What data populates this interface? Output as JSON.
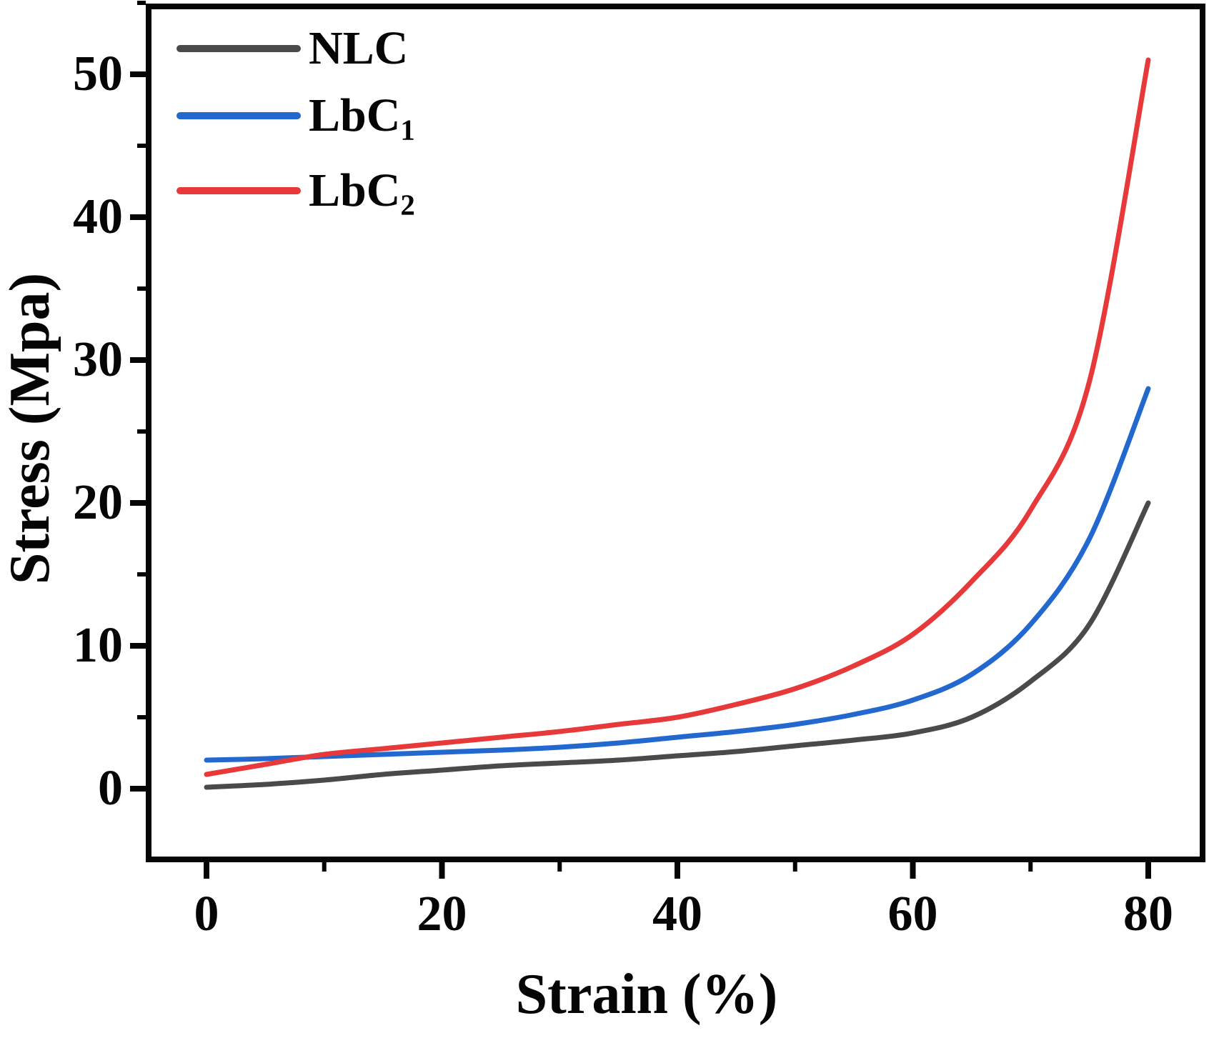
{
  "chart_data": {
    "type": "line",
    "title": "",
    "xlabel": "Strain (%)",
    "ylabel": "Stress (Mpa)",
    "xlim": [
      0,
      80
    ],
    "ylim": [
      0,
      50
    ],
    "grid": false,
    "legend_position": "top-left",
    "x": [
      0,
      5,
      10,
      15,
      20,
      25,
      30,
      35,
      40,
      45,
      50,
      55,
      60,
      65,
      70,
      75,
      80
    ],
    "series": [
      {
        "name": "NLC",
        "sub": "",
        "color_key": "nlc",
        "values": [
          0.1,
          0.3,
          0.6,
          1.0,
          1.3,
          1.6,
          1.8,
          2.0,
          2.3,
          2.6,
          3.0,
          3.4,
          3.9,
          5.0,
          7.5,
          11.5,
          20.0
        ]
      },
      {
        "name": "LbC",
        "sub": "1",
        "color_key": "lbc1",
        "values": [
          2.0,
          2.1,
          2.25,
          2.4,
          2.55,
          2.7,
          2.9,
          3.2,
          3.6,
          4.0,
          4.5,
          5.2,
          6.2,
          8.0,
          11.5,
          17.5,
          28.0
        ]
      },
      {
        "name": "LbC",
        "sub": "2",
        "color_key": "lbc2",
        "values": [
          1.0,
          1.7,
          2.4,
          2.8,
          3.2,
          3.6,
          4.0,
          4.5,
          5.0,
          5.9,
          7.0,
          8.6,
          10.8,
          14.5,
          19.5,
          28.5,
          51.0
        ]
      }
    ],
    "x_ticks_major": [
      0,
      20,
      40,
      60,
      80
    ],
    "x_ticks_minor": [
      10,
      30,
      50,
      70
    ],
    "y_ticks_major": [
      0,
      10,
      20,
      30,
      40,
      50
    ],
    "y_ticks_minor": [
      5,
      15,
      25,
      35,
      45,
      55
    ]
  },
  "colors": {
    "nlc": "#4a4a4c",
    "lbc1": "#2268cf",
    "lbc2": "#e8393a",
    "axis": "#050505"
  }
}
